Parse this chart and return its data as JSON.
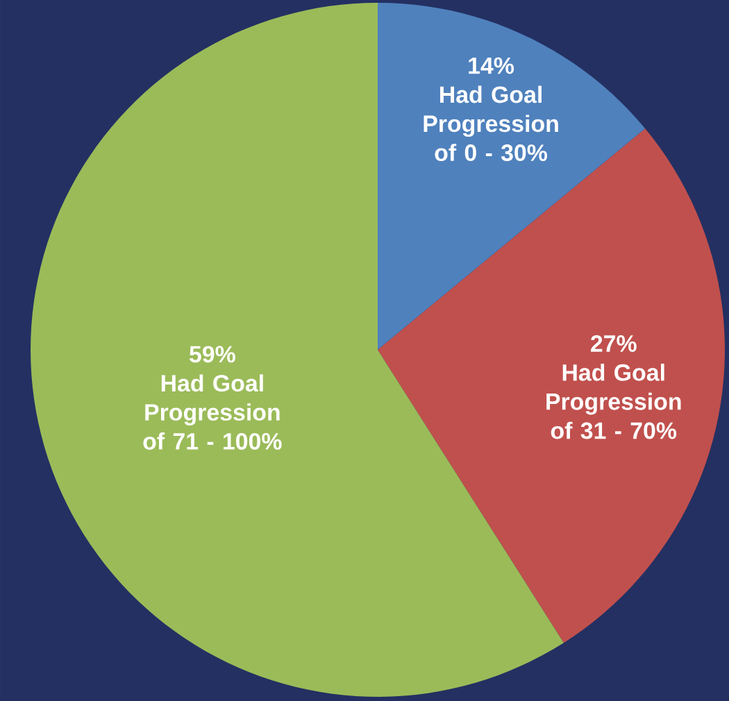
{
  "chart_data": {
    "type": "pie",
    "categories": [
      "Had Goal Progression of 0 - 30%",
      "Had Goal Progression of 31 - 70%",
      "Had Goal Progression of 71 - 100%"
    ],
    "values": [
      14,
      27,
      59
    ],
    "value_labels": [
      "14%",
      "27%",
      "59%"
    ],
    "colors": [
      "#4f81bd",
      "#c0504d",
      "#9bbb59"
    ]
  }
}
